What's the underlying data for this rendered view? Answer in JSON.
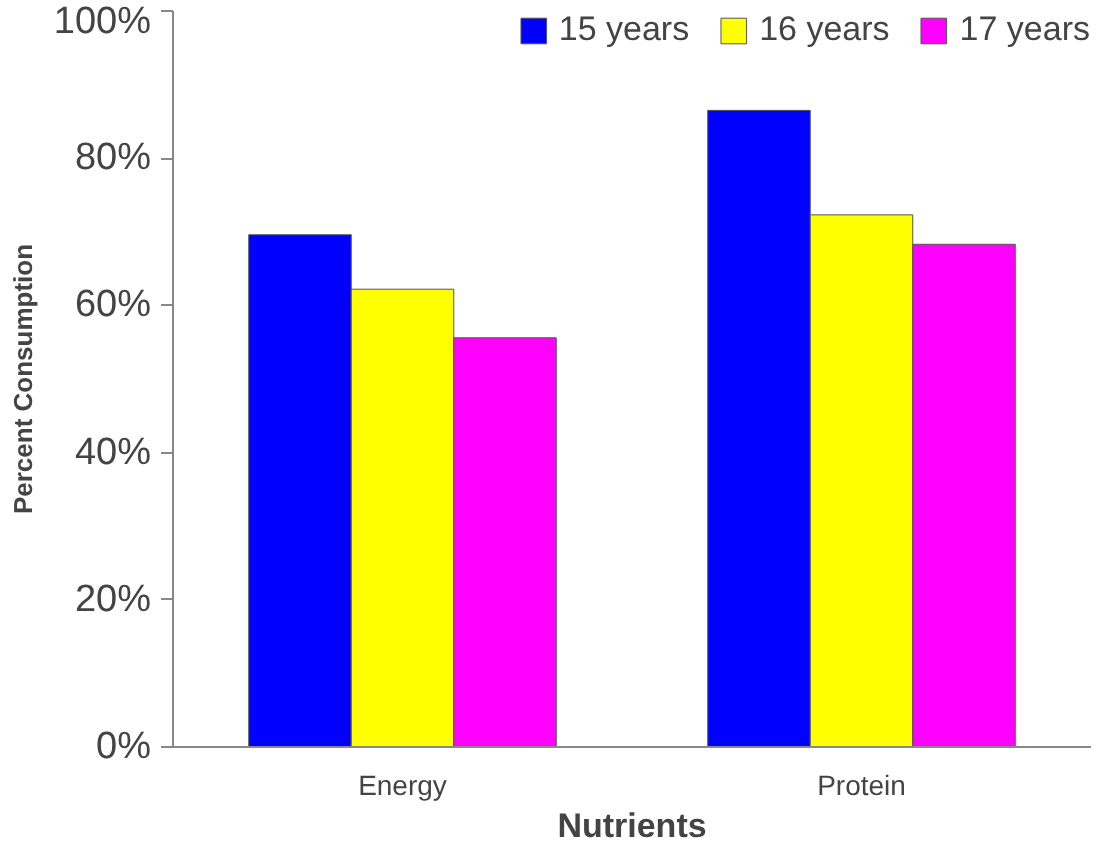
{
  "chart_data": {
    "type": "bar",
    "xlabel": "Nutrients",
    "ylabel": "Percent Consumption",
    "categories": [
      "Energy",
      "Protein"
    ],
    "series": [
      {
        "name": "15 years",
        "color": "#0000ff",
        "values": [
          69.6,
          86.5
        ]
      },
      {
        "name": "16 years",
        "color": "#ffff00",
        "values": [
          62.2,
          72.3
        ]
      },
      {
        "name": "17 years",
        "color": "#ff00ff",
        "values": [
          55.6,
          68.3
        ]
      }
    ],
    "ylim": [
      0,
      100
    ],
    "yticks": [
      {
        "value": 0,
        "label": "0%"
      },
      {
        "value": 20,
        "label": "20%"
      },
      {
        "value": 40,
        "label": "40%"
      },
      {
        "value": 60,
        "label": "60%"
      },
      {
        "value": 80,
        "label": "80%"
      },
      {
        "value": 100,
        "label": "100%"
      }
    ],
    "grid": false,
    "legend": "top right"
  }
}
